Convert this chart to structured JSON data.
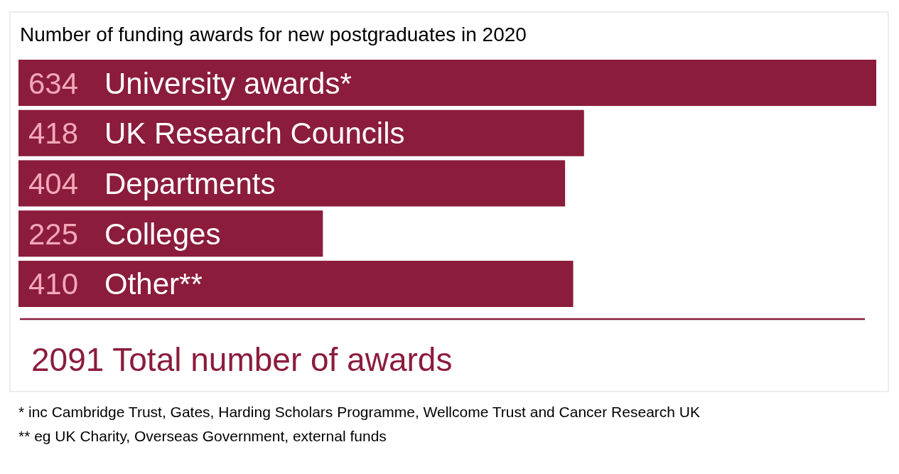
{
  "chart_data": {
    "type": "bar",
    "orientation": "horizontal",
    "title": "Number of funding awards for new postgraduates in 2020",
    "categories": [
      "University awards*",
      "UK Research Councils",
      "Departments",
      "Colleges",
      "Other**"
    ],
    "values": [
      634,
      418,
      404,
      225,
      410
    ],
    "color": "#8b1c3c",
    "data_labels": true,
    "annotations": [
      "2091 Total number of awards",
      "* inc Cambridge Trust, Gates, Harding Scholars Programme, Wellcome Trust and Cancer Research UK",
      "** eg UK Charity, Overseas Government, external funds"
    ]
  }
}
